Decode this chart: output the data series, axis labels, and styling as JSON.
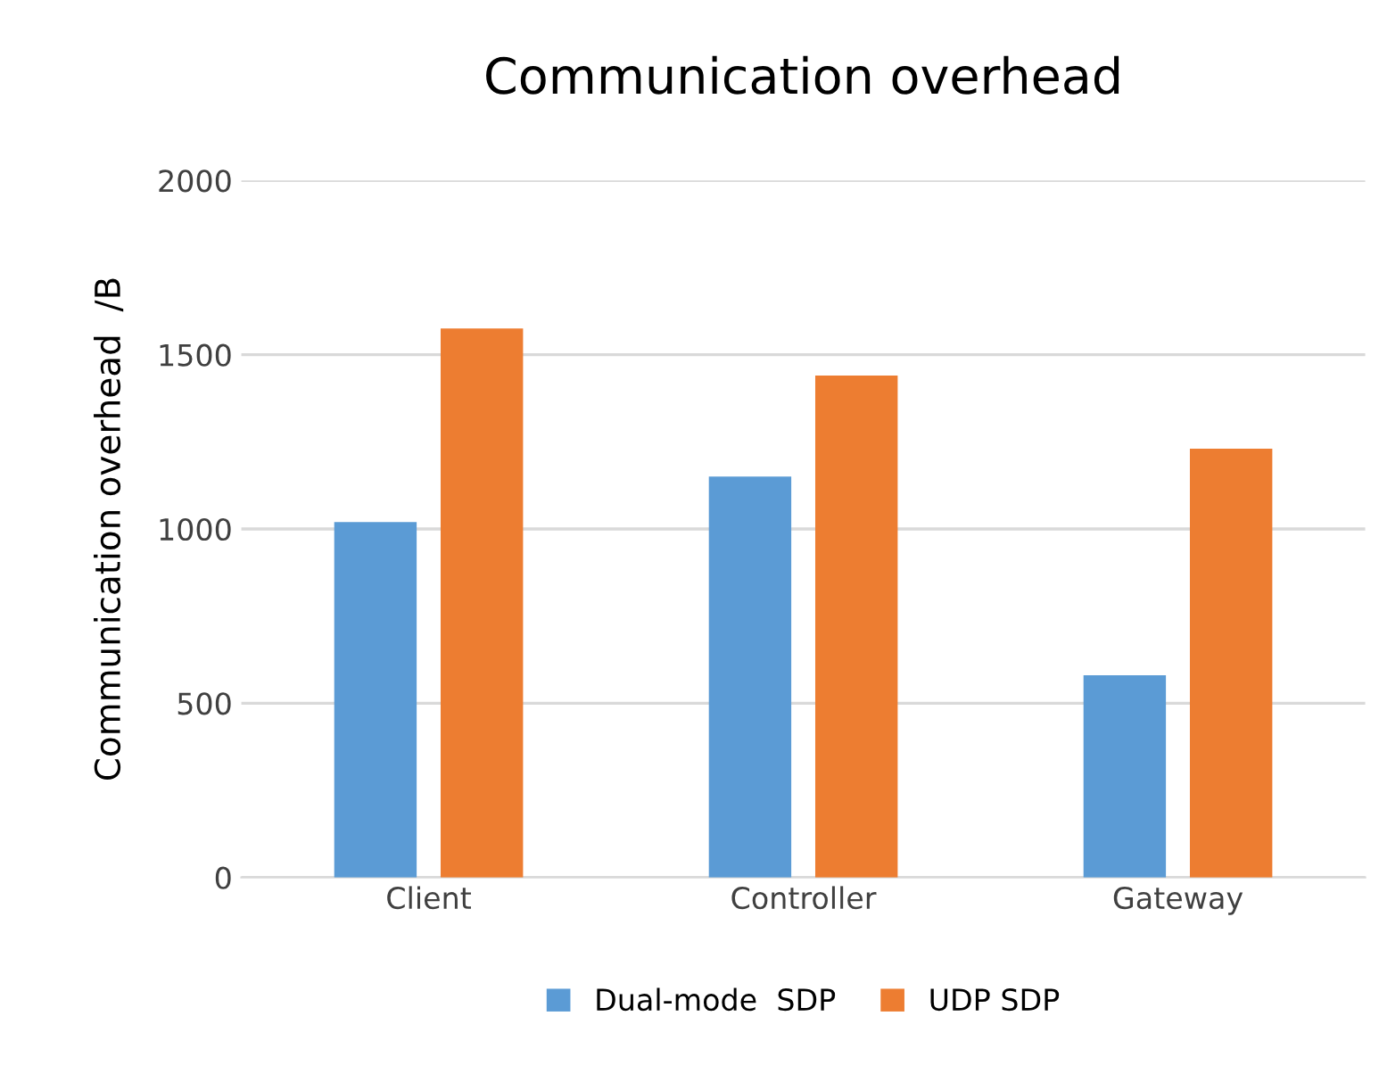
{
  "chart_data": {
    "type": "bar",
    "title": "Communication overhead",
    "ylabel": "Communication overhead  /B",
    "categories": [
      "Client",
      "Controller",
      "Gateway"
    ],
    "series": [
      {
        "name": "Dual-mode  SDP",
        "color": "#5b9bd5",
        "values": [
          1020,
          1150,
          580
        ]
      },
      {
        "name": "UDP SDP",
        "color": "#ed7d31",
        "values": [
          1575,
          1440,
          1230
        ]
      }
    ],
    "ylim": [
      0,
      2000
    ],
    "yticks": [
      0,
      500,
      1000,
      1500,
      2000
    ],
    "grid": "y",
    "legend": "bottom"
  }
}
